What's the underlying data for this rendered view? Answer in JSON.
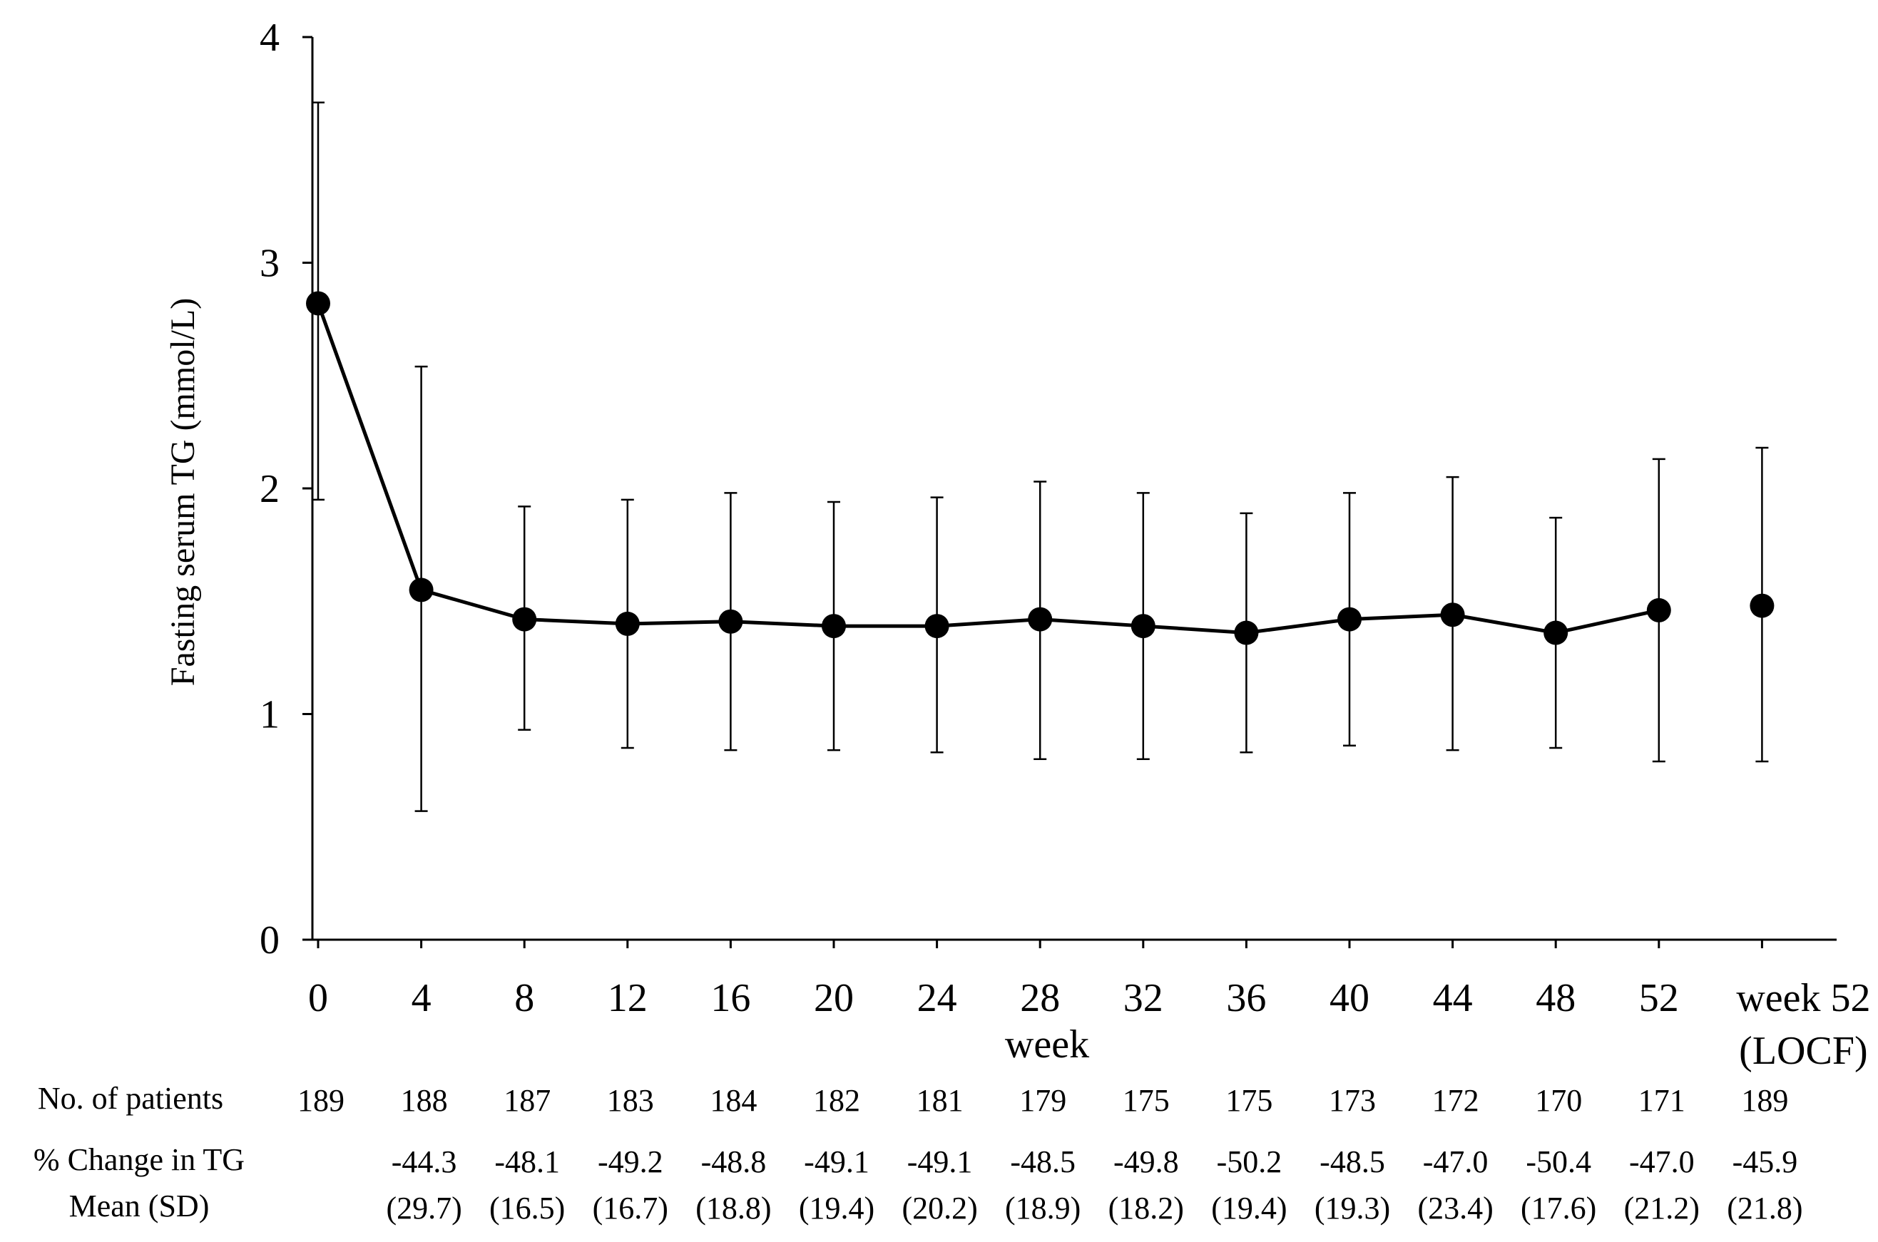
{
  "chart_data": {
    "type": "line",
    "title": "",
    "xlabel": "week",
    "ylabel": "Fasting serum TG (mmol/L)",
    "ylim": [
      0,
      4
    ],
    "yticks": [
      "0",
      "1",
      "2",
      "3",
      "4"
    ],
    "grid": false,
    "legend": "none",
    "colors": {
      "line": "#000000",
      "marker": "#000000",
      "axis": "#000000"
    },
    "categories": [
      "0",
      "4",
      "8",
      "12",
      "16",
      "20",
      "24",
      "28",
      "32",
      "36",
      "40",
      "44",
      "48",
      "52",
      "week 52\n(LOCF)"
    ],
    "series": [
      {
        "values": [
          2.82,
          1.55,
          1.42,
          1.4,
          1.41,
          1.39,
          1.39,
          1.42,
          1.39,
          1.36,
          1.42,
          1.44,
          1.36,
          1.46,
          1.48
        ],
        "error_upper": [
          3.71,
          2.54,
          1.92,
          1.95,
          1.98,
          1.94,
          1.96,
          2.03,
          1.98,
          1.89,
          1.98,
          2.05,
          1.87,
          2.13,
          2.18
        ],
        "error_lower": [
          1.95,
          0.57,
          0.93,
          0.85,
          0.84,
          0.84,
          0.83,
          0.8,
          0.8,
          0.83,
          0.86,
          0.84,
          0.85,
          0.79,
          0.79
        ],
        "line_connects_first_n": 14
      }
    ]
  },
  "table": {
    "patients_label": "No. of patients",
    "patients": [
      "189",
      "188",
      "187",
      "183",
      "184",
      "182",
      "181",
      "179",
      "175",
      "175",
      "173",
      "172",
      "170",
      "171",
      "189"
    ],
    "change_label_line1": "% Change  in TG",
    "change_label_line2": "Mean (SD)",
    "change_mean": [
      "",
      "-44.3",
      "-48.1",
      "-49.2",
      "-48.8",
      "-49.1",
      "-49.1",
      "-48.5",
      "-49.8",
      "-50.2",
      "-48.5",
      "-47.0",
      "-50.4",
      "-47.0",
      "-45.9"
    ],
    "change_sd": [
      "",
      "(29.7)",
      "(16.5)",
      "(16.7)",
      "(18.8)",
      "(19.4)",
      "(20.2)",
      "(18.9)",
      "(18.2)",
      "(19.4)",
      "(19.3)",
      "(23.4)",
      "(17.6)",
      "(21.2)",
      "(21.8)"
    ]
  }
}
